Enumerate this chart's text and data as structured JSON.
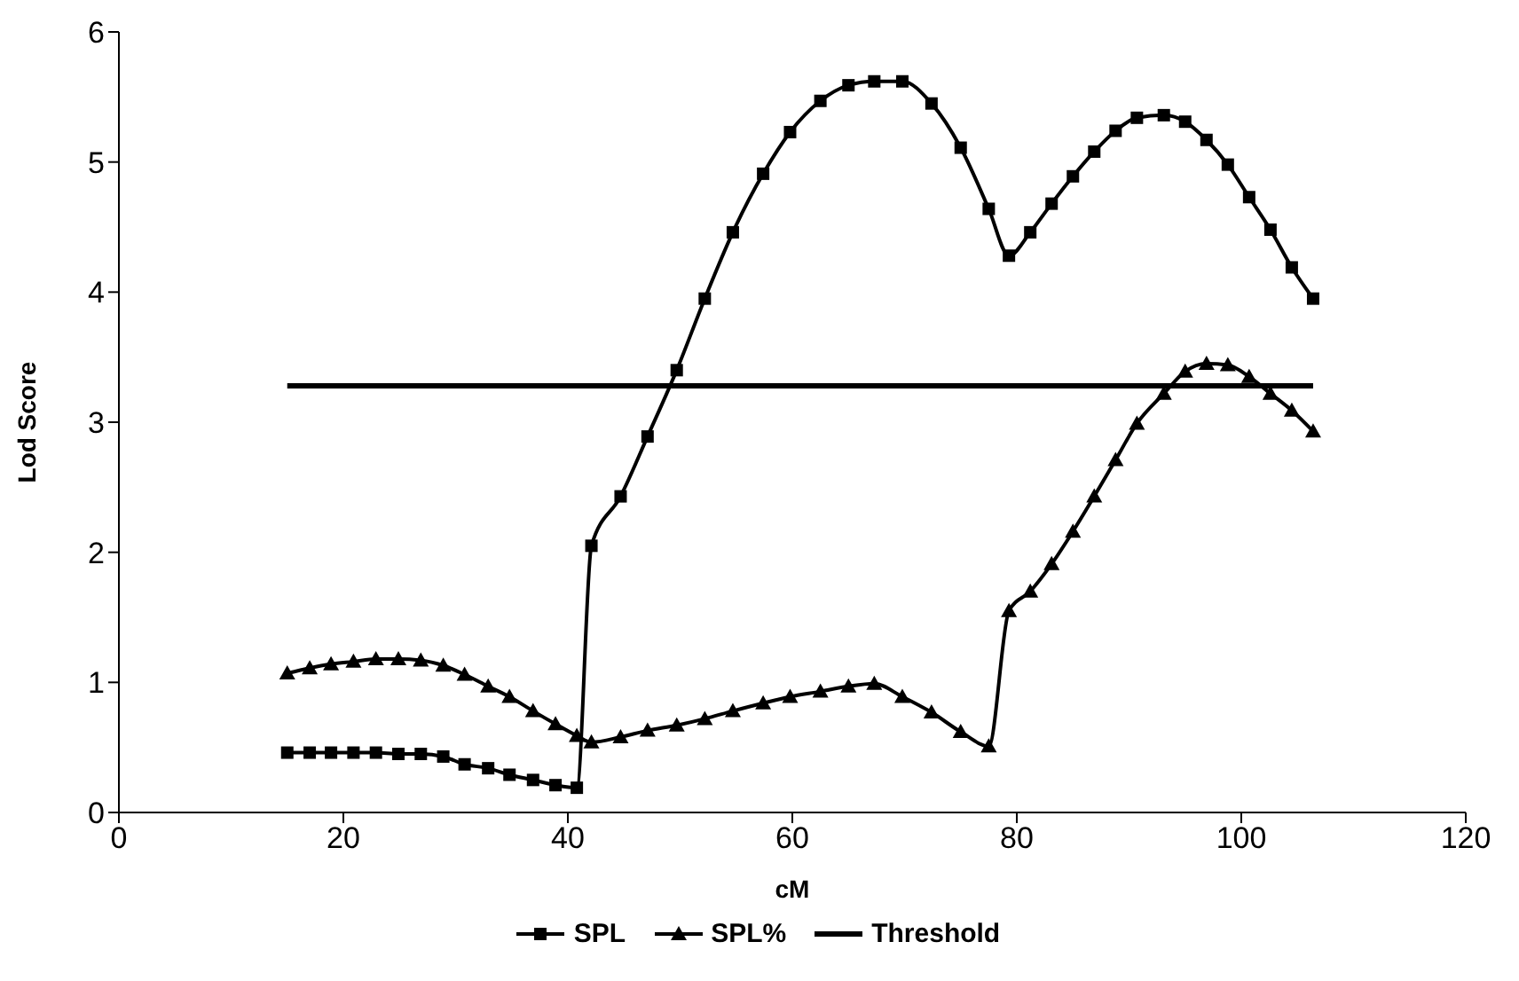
{
  "chart_data": {
    "type": "line",
    "xlabel": "cM",
    "ylabel": "Lod Score",
    "xlim": [
      0,
      120
    ],
    "xticks": [
      0,
      20,
      40,
      60,
      80,
      100,
      120
    ],
    "ylim": [
      0,
      6
    ],
    "yticks": [
      0,
      1,
      2,
      3,
      4,
      5,
      6
    ],
    "legend": "bottom",
    "series": [
      {
        "name": "SPL",
        "color": "#000000",
        "marker": "square",
        "x": [
          15.0,
          17.0,
          18.9,
          20.9,
          22.9,
          24.9,
          26.9,
          28.9,
          30.8,
          32.9,
          34.8,
          36.9,
          38.9,
          40.8,
          42.1,
          44.7,
          47.1,
          49.7,
          52.2,
          54.7,
          57.4,
          59.8,
          62.5,
          65.0,
          67.3,
          69.8,
          72.4,
          75.0,
          77.5,
          79.3,
          81.2,
          83.1,
          85.0,
          86.9,
          88.8,
          90.7,
          93.1,
          95.0,
          96.9,
          98.8,
          100.7,
          102.6,
          104.5,
          106.4
        ],
        "values": [
          0.46,
          0.46,
          0.46,
          0.46,
          0.46,
          0.45,
          0.45,
          0.43,
          0.37,
          0.34,
          0.29,
          0.25,
          0.21,
          0.19,
          2.05,
          2.43,
          2.89,
          3.4,
          3.95,
          4.46,
          4.91,
          5.23,
          5.47,
          5.59,
          5.62,
          5.62,
          5.45,
          5.11,
          4.64,
          4.28,
          4.46,
          4.68,
          4.89,
          5.08,
          5.24,
          5.34,
          5.36,
          5.31,
          5.17,
          4.98,
          4.73,
          4.48,
          4.19,
          3.95
        ]
      },
      {
        "name": "SPL%",
        "color": "#000000",
        "marker": "triangle",
        "x": [
          15.0,
          17.0,
          18.9,
          20.9,
          22.9,
          24.9,
          26.9,
          28.9,
          30.8,
          32.9,
          34.8,
          36.9,
          38.9,
          40.8,
          42.1,
          44.7,
          47.1,
          49.7,
          52.2,
          54.7,
          57.4,
          59.8,
          62.5,
          65.0,
          67.3,
          69.8,
          72.4,
          75.0,
          77.5,
          79.3,
          81.2,
          83.1,
          85.0,
          86.9,
          88.8,
          90.7,
          93.1,
          95.0,
          96.9,
          98.8,
          100.7,
          102.6,
          104.5,
          106.4
        ],
        "values": [
          1.07,
          1.11,
          1.14,
          1.16,
          1.18,
          1.18,
          1.17,
          1.13,
          1.06,
          0.97,
          0.89,
          0.78,
          0.68,
          0.59,
          0.54,
          0.58,
          0.63,
          0.67,
          0.72,
          0.78,
          0.84,
          0.89,
          0.93,
          0.97,
          0.99,
          0.89,
          0.77,
          0.62,
          0.51,
          1.55,
          1.7,
          1.91,
          2.16,
          2.43,
          2.71,
          2.99,
          3.22,
          3.39,
          3.45,
          3.44,
          3.35,
          3.22,
          3.09,
          2.93
        ]
      },
      {
        "name": "Threshold",
        "color": "#000000",
        "marker": "none",
        "x": [
          15.0,
          106.4
        ],
        "values": [
          3.28,
          3.28
        ]
      }
    ]
  }
}
